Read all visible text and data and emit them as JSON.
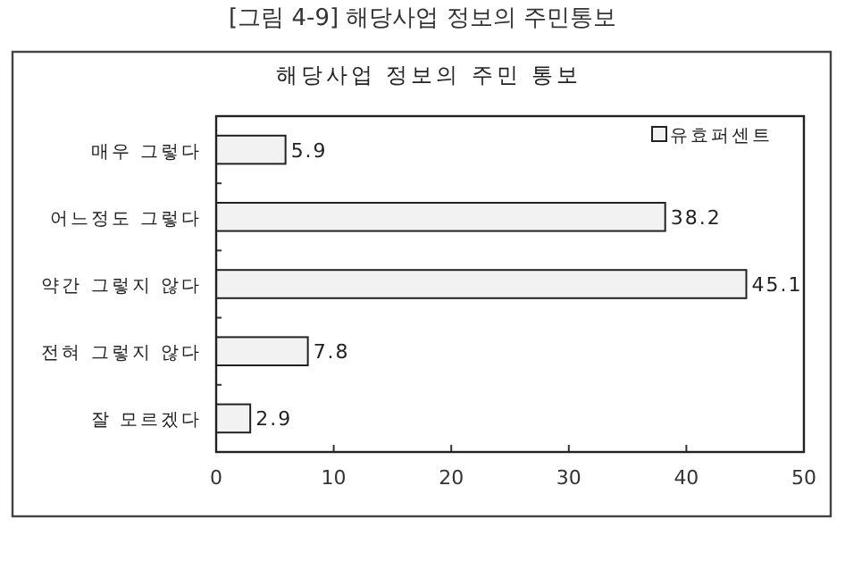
{
  "chart_data": {
    "type": "bar",
    "orientation": "horizontal",
    "title": "해당사업 정보의 주민 통보",
    "annotations": [
      "[그림 4-9] 해당사업 정보의 주민통보"
    ],
    "categories": [
      "매우 그렇다",
      "어느정도 그렇다",
      "약간 그렇지 않다",
      "전혀 그렇지 않다",
      "잘 모르겠다"
    ],
    "series": [
      {
        "name": "유효퍼센트",
        "color": "#f2f2f2",
        "values": [
          5.9,
          38.2,
          45.1,
          7.8,
          2.9
        ]
      }
    ],
    "xlim": [
      0,
      50
    ],
    "xticks": [
      0,
      10,
      20,
      30,
      40,
      50
    ],
    "data_labels": true,
    "legend": "top right",
    "grid": false
  }
}
